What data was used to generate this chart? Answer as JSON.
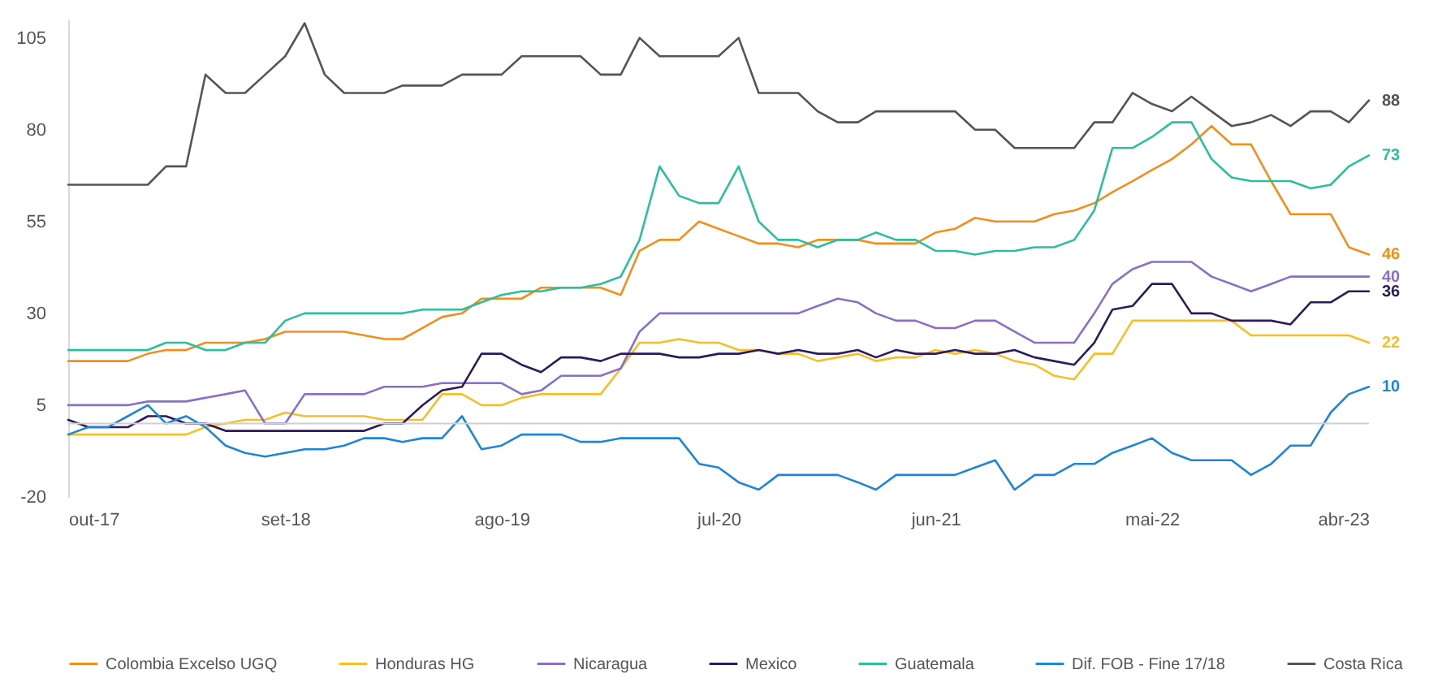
{
  "chart_data": {
    "type": "line",
    "x": [
      "2017-10",
      "2017-11",
      "2017-12",
      "2018-01",
      "2018-02",
      "2018-03",
      "2018-04",
      "2018-05",
      "2018-06",
      "2018-07",
      "2018-08",
      "2018-09",
      "2018-10",
      "2018-11",
      "2018-12",
      "2019-01",
      "2019-02",
      "2019-03",
      "2019-04",
      "2019-05",
      "2019-06",
      "2019-07",
      "2019-08",
      "2019-09",
      "2019-10",
      "2019-11",
      "2019-12",
      "2020-01",
      "2020-02",
      "2020-03",
      "2020-04",
      "2020-05",
      "2020-06",
      "2020-07",
      "2020-08",
      "2020-09",
      "2020-10",
      "2020-11",
      "2020-12",
      "2021-01",
      "2021-02",
      "2021-03",
      "2021-04",
      "2021-05",
      "2021-06",
      "2021-07",
      "2021-08",
      "2021-09",
      "2021-10",
      "2021-11",
      "2021-12",
      "2022-01",
      "2022-02",
      "2022-03",
      "2022-04",
      "2022-05",
      "2022-06",
      "2022-07",
      "2022-08",
      "2022-09",
      "2022-10",
      "2022-11",
      "2022-12",
      "2023-01",
      "2023-02",
      "2023-03",
      "2023-04"
    ],
    "xlim": [
      "2017-10",
      "2023-04"
    ],
    "xticks": [
      {
        "value": "2017-10",
        "label": "out-17"
      },
      {
        "value": "2018-09",
        "label": "set-18"
      },
      {
        "value": "2019-08",
        "label": "ago-19"
      },
      {
        "value": "2020-07",
        "label": "jul-20"
      },
      {
        "value": "2021-06",
        "label": "jun-21"
      },
      {
        "value": "2022-05",
        "label": "mai-22"
      },
      {
        "value": "2023-04",
        "label": "abr-23"
      }
    ],
    "ylim": [
      -20,
      110
    ],
    "yticks": [
      -20,
      5,
      30,
      55,
      80,
      105
    ],
    "legend": "bottom",
    "ref_lines": [
      {
        "axis": "y",
        "value": 0,
        "color": "#d0d0d0"
      }
    ],
    "series": [
      {
        "name": "Colombia Excelso UGQ",
        "color": "#f28e1c",
        "values": [
          17,
          17,
          17,
          17,
          19,
          20,
          20,
          22,
          22,
          22,
          23,
          25,
          25,
          25,
          25,
          24,
          23,
          23,
          26,
          29,
          30,
          34,
          34,
          34,
          37,
          37,
          37,
          37,
          35,
          47,
          50,
          50,
          55,
          53,
          51,
          49,
          49,
          48,
          50,
          50,
          50,
          49,
          49,
          49,
          52,
          53,
          56,
          55,
          55,
          55,
          57,
          58,
          60,
          63,
          66,
          69,
          72,
          76,
          81,
          76,
          76,
          66,
          57,
          57,
          57,
          48,
          46
        ],
        "value_labels": [
          null,
          null,
          null,
          null,
          null,
          null,
          null,
          null,
          null,
          null,
          null,
          null,
          null,
          null,
          null,
          null,
          null,
          null,
          null,
          null,
          null,
          null,
          null,
          null,
          null,
          null,
          null,
          null,
          null,
          null,
          null,
          null,
          null,
          null,
          null,
          null,
          null,
          null,
          null,
          null,
          null,
          null,
          null,
          null,
          null,
          null,
          null,
          null,
          null,
          null,
          null,
          null,
          null,
          null,
          null,
          null,
          null,
          null,
          null,
          null,
          null,
          null,
          null,
          null,
          null,
          null,
          "46"
        ]
      },
      {
        "name": "Honduras HG",
        "color": "#f5bf2a",
        "values": [
          -3,
          -3,
          -3,
          -3,
          -3,
          -3,
          -3,
          -1,
          0,
          1,
          1,
          3,
          2,
          2,
          2,
          2,
          1,
          1,
          1,
          8,
          8,
          5,
          5,
          7,
          8,
          8,
          8,
          8,
          15,
          22,
          22,
          23,
          22,
          22,
          20,
          20,
          19,
          19,
          17,
          18,
          19,
          17,
          18,
          18,
          20,
          19,
          20,
          19,
          17,
          16,
          13,
          12,
          19,
          19,
          28,
          28,
          28,
          28,
          28,
          28,
          24,
          24,
          24,
          24,
          24,
          24,
          22
        ],
        "value_labels": [
          null,
          null,
          null,
          null,
          null,
          null,
          null,
          null,
          null,
          null,
          null,
          null,
          null,
          null,
          null,
          null,
          null,
          null,
          null,
          null,
          null,
          null,
          null,
          null,
          null,
          null,
          null,
          null,
          null,
          null,
          null,
          null,
          null,
          null,
          null,
          null,
          null,
          null,
          null,
          null,
          null,
          null,
          null,
          null,
          null,
          null,
          null,
          null,
          null,
          null,
          null,
          null,
          null,
          null,
          null,
          null,
          null,
          null,
          null,
          null,
          null,
          null,
          null,
          null,
          null,
          null,
          "22"
        ]
      },
      {
        "name": "Nicaragua",
        "color": "#8a6fc9",
        "values": [
          5,
          5,
          5,
          5,
          6,
          6,
          6,
          7,
          8,
          9,
          0,
          0,
          8,
          8,
          8,
          8,
          10,
          10,
          10,
          11,
          11,
          11,
          11,
          8,
          9,
          13,
          13,
          13,
          15,
          25,
          30,
          30,
          30,
          30,
          30,
          30,
          30,
          30,
          32,
          34,
          33,
          30,
          28,
          28,
          26,
          26,
          28,
          28,
          25,
          22,
          22,
          22,
          30,
          38,
          42,
          44,
          44,
          44,
          40,
          38,
          36,
          38,
          40,
          40,
          40,
          40,
          40
        ],
        "value_labels": [
          null,
          null,
          null,
          null,
          null,
          null,
          null,
          null,
          null,
          null,
          null,
          null,
          null,
          null,
          null,
          null,
          null,
          null,
          null,
          null,
          null,
          null,
          null,
          null,
          null,
          null,
          null,
          null,
          null,
          null,
          null,
          null,
          null,
          null,
          null,
          null,
          null,
          null,
          null,
          null,
          null,
          null,
          null,
          null,
          null,
          null,
          null,
          null,
          null,
          null,
          null,
          null,
          null,
          null,
          null,
          null,
          null,
          null,
          null,
          null,
          null,
          null,
          null,
          null,
          null,
          null,
          "40"
        ]
      },
      {
        "name": "Mexico",
        "color": "#2d1a5c",
        "values": [
          1,
          -1,
          -1,
          -1,
          2,
          2,
          0,
          0,
          -2,
          -2,
          -2,
          -2,
          -2,
          -2,
          -2,
          -2,
          0,
          0,
          5,
          9,
          10,
          19,
          19,
          16,
          14,
          18,
          18,
          17,
          19,
          19,
          19,
          18,
          18,
          19,
          19,
          20,
          19,
          20,
          19,
          19,
          20,
          18,
          20,
          19,
          19,
          20,
          19,
          19,
          20,
          18,
          17,
          16,
          22,
          31,
          32,
          38,
          38,
          30,
          30,
          28,
          28,
          28,
          27,
          33,
          33,
          36,
          36
        ],
        "value_labels": [
          null,
          null,
          null,
          null,
          null,
          null,
          null,
          null,
          null,
          null,
          null,
          null,
          null,
          null,
          null,
          null,
          null,
          null,
          null,
          null,
          null,
          null,
          null,
          null,
          null,
          null,
          null,
          null,
          null,
          null,
          null,
          null,
          null,
          null,
          null,
          null,
          null,
          null,
          null,
          null,
          null,
          null,
          null,
          null,
          null,
          null,
          null,
          null,
          null,
          null,
          null,
          null,
          null,
          null,
          null,
          null,
          null,
          null,
          null,
          null,
          null,
          null,
          null,
          null,
          null,
          null,
          "36"
        ]
      },
      {
        "name": "Guatemala",
        "color": "#2bbf9b",
        "values": [
          20,
          20,
          20,
          20,
          20,
          22,
          22,
          20,
          20,
          22,
          22,
          28,
          30,
          30,
          30,
          30,
          30,
          30,
          31,
          31,
          31,
          33,
          35,
          36,
          36,
          37,
          37,
          38,
          40,
          50,
          70,
          62,
          60,
          60,
          70,
          55,
          50,
          50,
          48,
          50,
          50,
          52,
          50,
          50,
          47,
          47,
          46,
          47,
          47,
          48,
          48,
          50,
          58,
          75,
          75,
          78,
          82,
          82,
          72,
          67,
          66,
          66,
          66,
          64,
          65,
          70,
          73
        ],
        "value_labels": [
          null,
          null,
          null,
          null,
          null,
          null,
          null,
          null,
          null,
          null,
          null,
          null,
          null,
          null,
          null,
          null,
          null,
          null,
          null,
          null,
          null,
          null,
          null,
          null,
          null,
          null,
          null,
          null,
          null,
          null,
          null,
          null,
          null,
          null,
          null,
          null,
          null,
          null,
          null,
          null,
          null,
          null,
          null,
          null,
          null,
          null,
          null,
          null,
          null,
          null,
          null,
          null,
          null,
          null,
          null,
          null,
          null,
          null,
          null,
          null,
          null,
          null,
          null,
          null,
          null,
          null,
          "73"
        ]
      },
      {
        "name": "Dif. FOB - Fine 17/18",
        "color": "#1f85d6",
        "values": [
          -3,
          -1,
          -1,
          2,
          5,
          0,
          2,
          -1,
          -6,
          -8,
          -9,
          -8,
          -7,
          -7,
          -6,
          -4,
          -4,
          -5,
          -4,
          -4,
          2,
          -7,
          -6,
          -3,
          -3,
          -3,
          -5,
          -5,
          -4,
          -4,
          -4,
          -4,
          -11,
          -12,
          -16,
          -18,
          -14,
          -14,
          -14,
          -14,
          -16,
          -18,
          -14,
          -14,
          -14,
          -14,
          -12,
          -10,
          -18,
          -14,
          -14,
          -11,
          -11,
          -8,
          -6,
          -4,
          -8,
          -10,
          -10,
          -10,
          -14,
          -11,
          -6,
          -6,
          3,
          8,
          10
        ],
        "value_labels": [
          null,
          null,
          null,
          null,
          null,
          null,
          null,
          null,
          null,
          null,
          null,
          null,
          null,
          null,
          null,
          null,
          null,
          null,
          null,
          null,
          null,
          null,
          null,
          null,
          null,
          null,
          null,
          null,
          null,
          null,
          null,
          null,
          null,
          null,
          null,
          null,
          null,
          null,
          null,
          null,
          null,
          null,
          null,
          null,
          null,
          null,
          null,
          null,
          null,
          null,
          null,
          null,
          null,
          null,
          null,
          null,
          null,
          null,
          null,
          null,
          null,
          null,
          null,
          null,
          null,
          null,
          "10"
        ]
      },
      {
        "name": "Costa Rica",
        "color": "#555555",
        "values": [
          65,
          65,
          65,
          65,
          65,
          70,
          70,
          95,
          90,
          90,
          95,
          100,
          109,
          95,
          90,
          90,
          90,
          92,
          92,
          92,
          95,
          95,
          95,
          100,
          100,
          100,
          100,
          95,
          95,
          105,
          100,
          100,
          100,
          100,
          105,
          90,
          90,
          90,
          85,
          82,
          82,
          85,
          85,
          85,
          85,
          85,
          80,
          80,
          75,
          75,
          75,
          75,
          82,
          82,
          90,
          87,
          85,
          89,
          85,
          81,
          82,
          84,
          81,
          85,
          85,
          82,
          88
        ],
        "value_labels": [
          null,
          null,
          null,
          null,
          null,
          null,
          null,
          null,
          null,
          null,
          null,
          null,
          null,
          null,
          null,
          null,
          null,
          null,
          null,
          null,
          null,
          null,
          null,
          null,
          null,
          null,
          null,
          null,
          null,
          null,
          null,
          null,
          null,
          null,
          null,
          null,
          null,
          null,
          null,
          null,
          null,
          null,
          null,
          null,
          null,
          null,
          null,
          null,
          null,
          null,
          null,
          null,
          null,
          null,
          null,
          null,
          null,
          null,
          null,
          null,
          null,
          null,
          null,
          null,
          null,
          null,
          "88"
        ]
      }
    ]
  }
}
